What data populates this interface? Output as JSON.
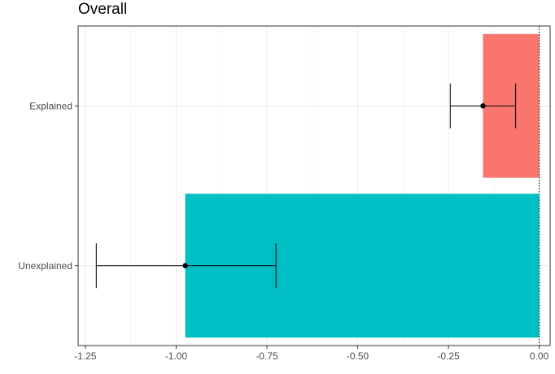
{
  "chart_data": {
    "type": "bar",
    "orientation": "horizontal",
    "title": "Overall",
    "xlabel": "",
    "ylabel": "",
    "categories": [
      "Explained",
      "Unexplained"
    ],
    "values": [
      -0.155,
      -0.975
    ],
    "error_bars": [
      {
        "category": "Explained",
        "point": -0.155,
        "low": -0.245,
        "high": -0.065
      },
      {
        "category": "Unexplained",
        "point": -0.975,
        "low": -1.22,
        "high": -0.725
      }
    ],
    "bar_colors": [
      "#F8766D",
      "#00BFC4"
    ],
    "xlim": [
      -1.27,
      0.03
    ],
    "x_ticks": [
      -1.25,
      -1.0,
      -0.75,
      -0.5,
      -0.25,
      0.0
    ],
    "x_tick_labels": [
      "-1.25",
      "-1.00",
      "-0.75",
      "-0.50",
      "-0.25",
      "0.00"
    ],
    "reference_line": {
      "x": 0,
      "style": "dotted"
    },
    "grid": true,
    "legend": "none"
  }
}
